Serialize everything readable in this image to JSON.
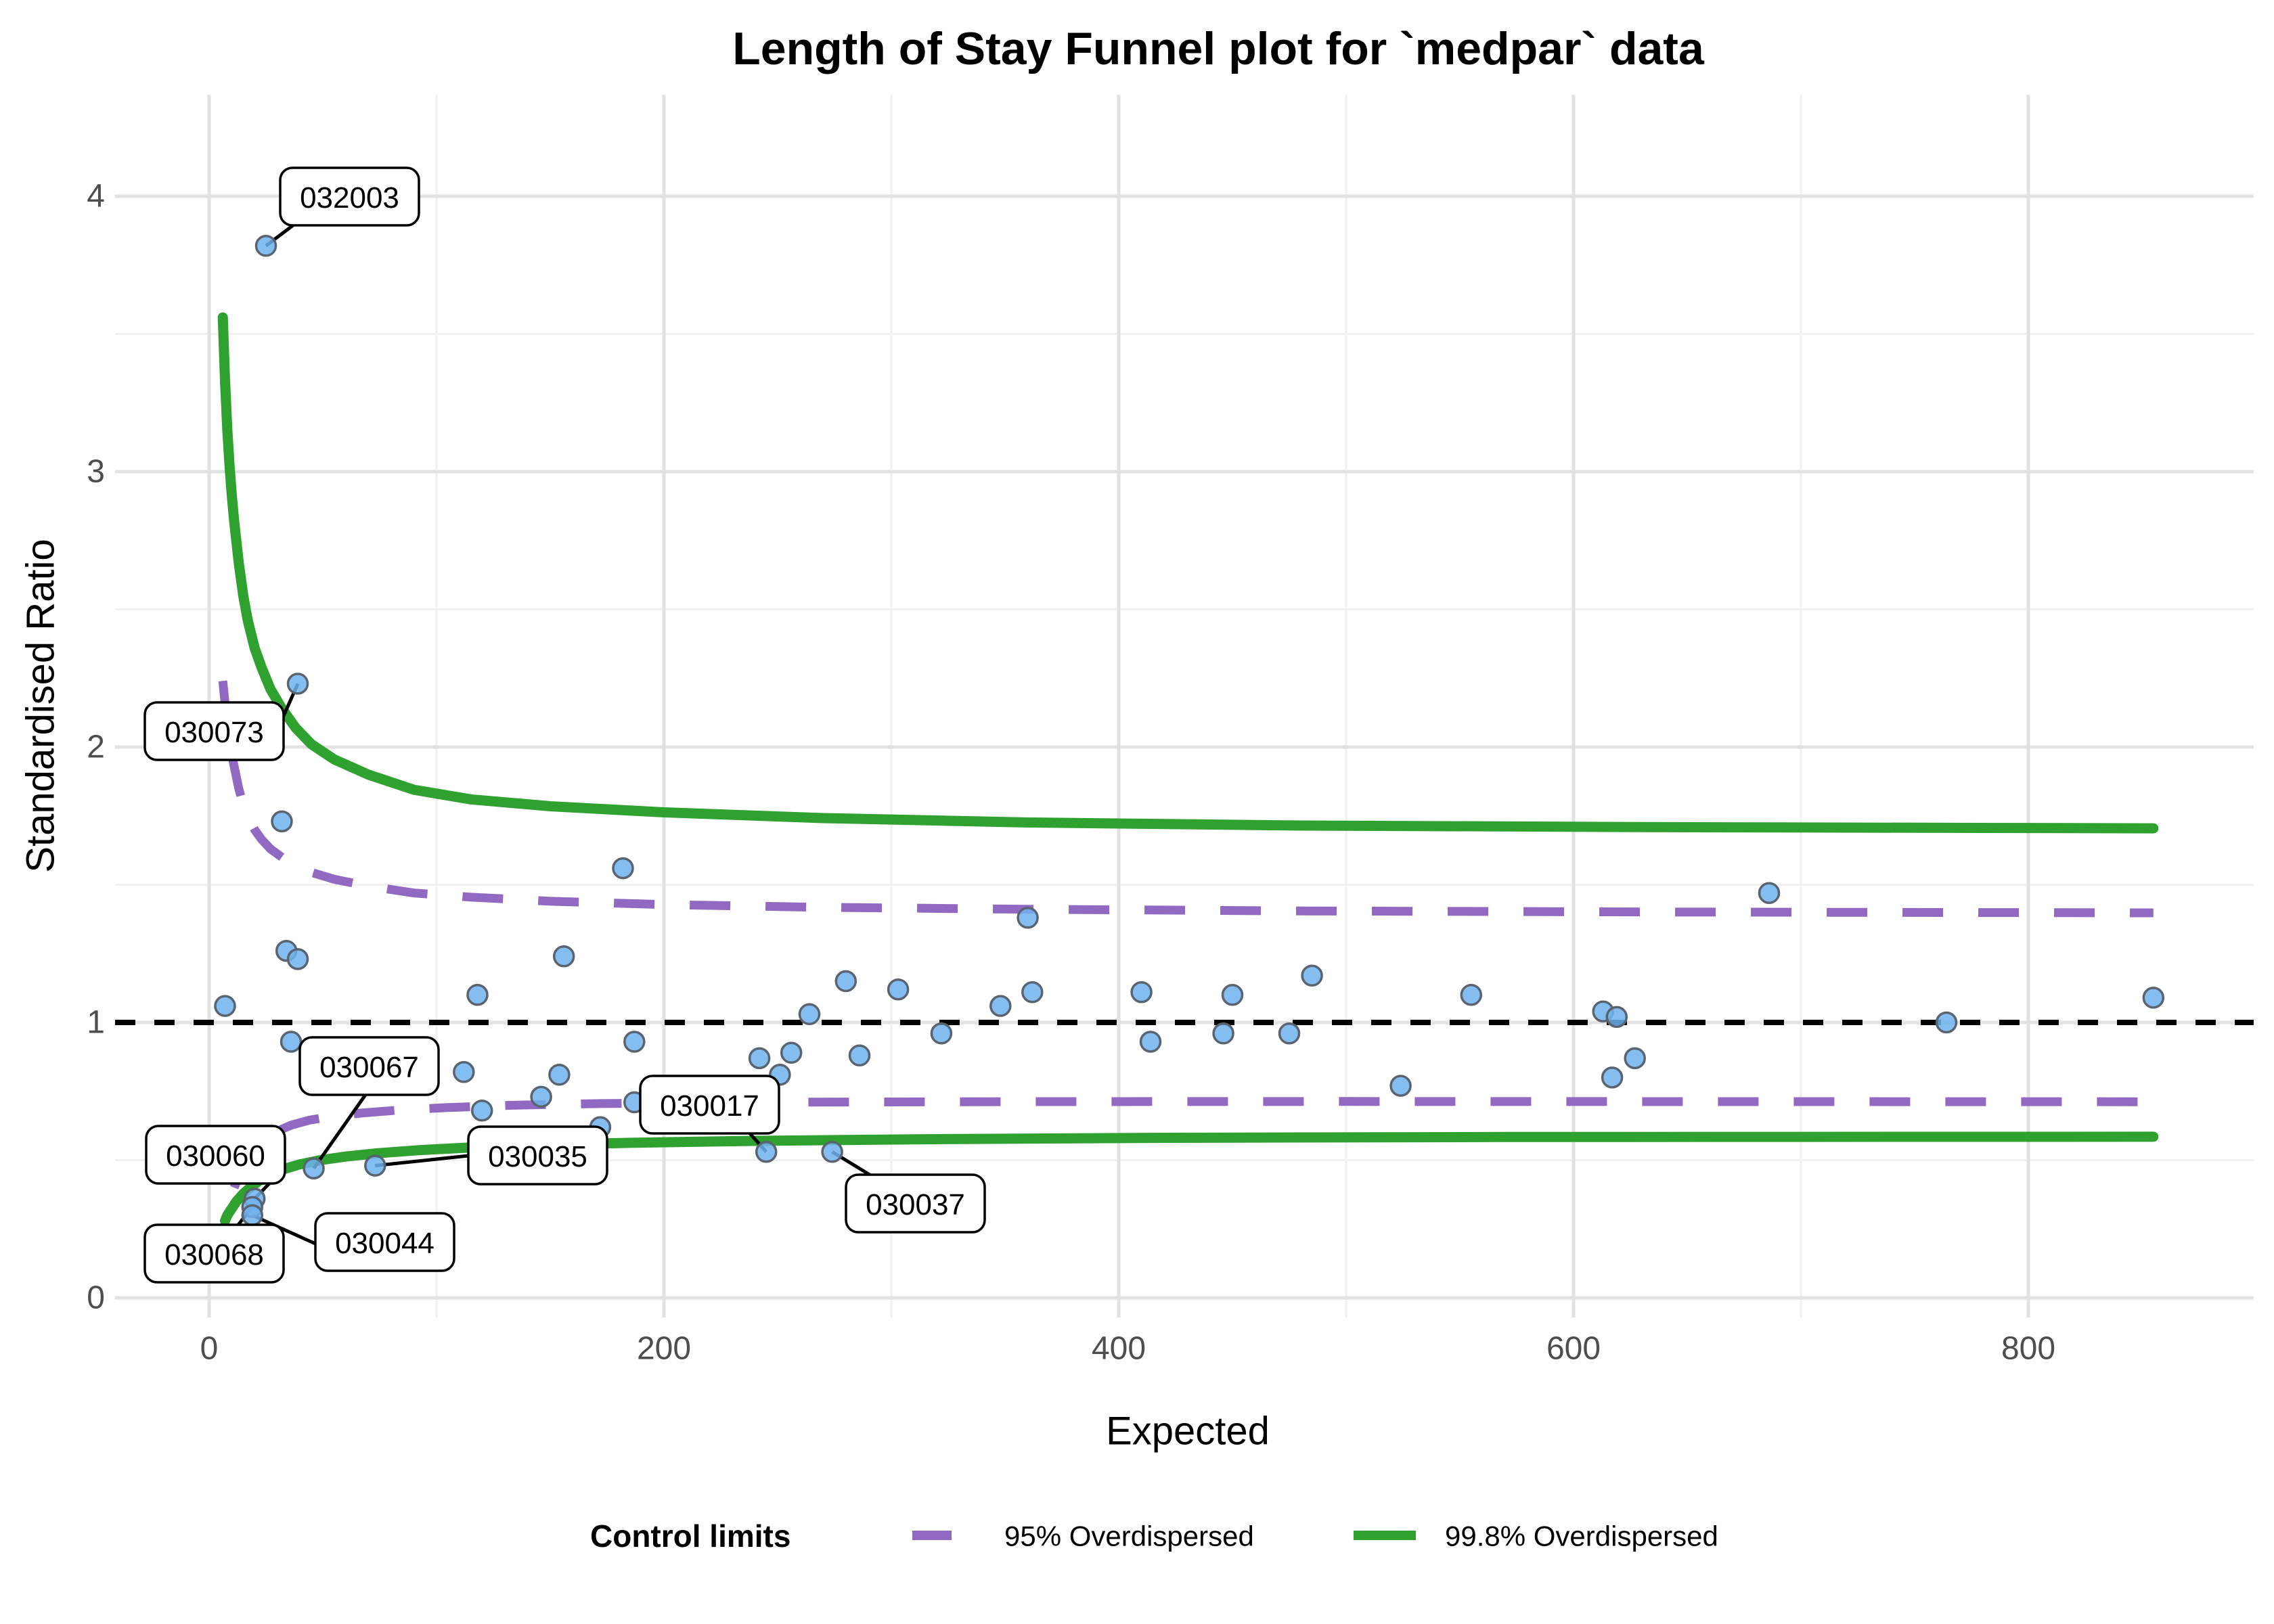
{
  "title": "Length of Stay Funnel plot for `medpar` data",
  "x_axis": {
    "title": "Expected",
    "ticks": [
      {
        "value": 0,
        "label": "0"
      },
      {
        "value": 200,
        "label": "200"
      },
      {
        "value": 400,
        "label": "400"
      },
      {
        "value": 600,
        "label": "600"
      },
      {
        "value": 800,
        "label": "800"
      }
    ],
    "minor_ticks": [
      100,
      300,
      500,
      700
    ]
  },
  "y_axis": {
    "title": "Standardised Ratio",
    "ticks": [
      {
        "value": 0,
        "label": "0"
      },
      {
        "value": 1,
        "label": "1"
      },
      {
        "value": 2,
        "label": "2"
      },
      {
        "value": 3,
        "label": "3"
      },
      {
        "value": 4,
        "label": "4"
      }
    ],
    "minor_ticks": [
      0.5,
      1.5,
      2.5,
      3.5
    ]
  },
  "legend": {
    "title": "Control limits",
    "items": [
      {
        "label": "95% Overdispersed",
        "color": "#9269c2",
        "style": "dashed"
      },
      {
        "label": "99.8% Overdispersed",
        "color": "#2ea12e",
        "style": "solid"
      }
    ]
  },
  "colors": {
    "point_fill": "#6fb1ec",
    "point_stroke": "#5a6470",
    "limit_95": "#9269c2",
    "limit_998": "#2ea12e",
    "reference_line": "#000000",
    "gridline_major": "#e2e2e2",
    "gridline_minor": "#f0f0f0",
    "tick_text": "#4d4d4d"
  },
  "chart_data": {
    "type": "scatter",
    "title": "Length of Stay Funnel plot for `medpar` data",
    "xlabel": "Expected",
    "ylabel": "Standardised Ratio",
    "xlim": [
      -40,
      898
    ],
    "ylim": [
      -0.07,
      4.37
    ],
    "grid": true,
    "legend_position": "bottom",
    "reference_line_y": 1,
    "points": [
      [
        7,
        1.06
      ],
      [
        32,
        1.73
      ],
      [
        34,
        1.26
      ],
      [
        39,
        1.23
      ],
      [
        36,
        0.93
      ],
      [
        118,
        1.1
      ],
      [
        112,
        0.82
      ],
      [
        120,
        0.68
      ],
      [
        146,
        0.73
      ],
      [
        154,
        0.81
      ],
      [
        156,
        1.24
      ],
      [
        172,
        0.62
      ],
      [
        182,
        1.56
      ],
      [
        187,
        0.71
      ],
      [
        187,
        0.93
      ],
      [
        242,
        0.87
      ],
      [
        251,
        0.81
      ],
      [
        256,
        0.89
      ],
      [
        264,
        1.03
      ],
      [
        280,
        1.15
      ],
      [
        286,
        0.88
      ],
      [
        303,
        1.12
      ],
      [
        322,
        0.96
      ],
      [
        348,
        1.06
      ],
      [
        360,
        1.38
      ],
      [
        362,
        1.11
      ],
      [
        410,
        1.11
      ],
      [
        414,
        0.93
      ],
      [
        446,
        0.96
      ],
      [
        450,
        1.1
      ],
      [
        475,
        0.96
      ],
      [
        485,
        1.17
      ],
      [
        524,
        0.77
      ],
      [
        555,
        1.1
      ],
      [
        613,
        1.04
      ],
      [
        619,
        1.02
      ],
      [
        617,
        0.8
      ],
      [
        627,
        0.87
      ],
      [
        686,
        1.47
      ],
      [
        764,
        1.0
      ],
      [
        855,
        1.09
      ]
    ],
    "labeled_points": [
      {
        "label": "032003",
        "x": 25,
        "y": 3.82
      },
      {
        "label": "030073",
        "x": 39,
        "y": 2.23
      },
      {
        "label": "030067",
        "x": 46,
        "y": 0.47
      },
      {
        "label": "030060",
        "x": 20,
        "y": 0.36
      },
      {
        "label": "030068",
        "x": 19,
        "y": 0.33
      },
      {
        "label": "030044",
        "x": 19,
        "y": 0.3
      },
      {
        "label": "030035",
        "x": 73,
        "y": 0.48
      },
      {
        "label": "030017",
        "x": 245,
        "y": 0.53
      },
      {
        "label": "030037",
        "x": 274,
        "y": 0.53
      }
    ],
    "control_limits": {
      "upper_998": [
        [
          6,
          3.56
        ],
        [
          7,
          3.33
        ],
        [
          8,
          3.15
        ],
        [
          9,
          3.02
        ],
        [
          10,
          2.91
        ],
        [
          11,
          2.82
        ],
        [
          13,
          2.67
        ],
        [
          15,
          2.55
        ],
        [
          17,
          2.46
        ],
        [
          20,
          2.36
        ],
        [
          23,
          2.29
        ],
        [
          27,
          2.21
        ],
        [
          32,
          2.14
        ],
        [
          38,
          2.07
        ],
        [
          45,
          2.01
        ],
        [
          55,
          1.955
        ],
        [
          70,
          1.9
        ],
        [
          90,
          1.845
        ],
        [
          115,
          1.81
        ],
        [
          150,
          1.785
        ],
        [
          200,
          1.763
        ],
        [
          270,
          1.742
        ],
        [
          360,
          1.726
        ],
        [
          480,
          1.715
        ],
        [
          640,
          1.709
        ],
        [
          855,
          1.705
        ]
      ],
      "upper_95": [
        [
          6,
          2.24
        ],
        [
          7,
          2.16
        ],
        [
          8,
          2.09
        ],
        [
          9,
          2.03
        ],
        [
          10,
          1.97
        ],
        [
          11,
          1.93
        ],
        [
          13,
          1.85
        ],
        [
          15,
          1.79
        ],
        [
          17,
          1.745
        ],
        [
          20,
          1.7
        ],
        [
          23,
          1.665
        ],
        [
          27,
          1.63
        ],
        [
          32,
          1.6
        ],
        [
          38,
          1.57
        ],
        [
          45,
          1.545
        ],
        [
          55,
          1.52
        ],
        [
          70,
          1.495
        ],
        [
          90,
          1.47
        ],
        [
          115,
          1.455
        ],
        [
          150,
          1.44
        ],
        [
          200,
          1.428
        ],
        [
          270,
          1.418
        ],
        [
          360,
          1.411
        ],
        [
          480,
          1.405
        ],
        [
          640,
          1.401
        ],
        [
          855,
          1.398
        ]
      ],
      "lower_95": [
        [
          11,
          0.4
        ],
        [
          13,
          0.44
        ],
        [
          15,
          0.475
        ],
        [
          18,
          0.515
        ],
        [
          21,
          0.545
        ],
        [
          25,
          0.578
        ],
        [
          30,
          0.605
        ],
        [
          36,
          0.627
        ],
        [
          44,
          0.645
        ],
        [
          54,
          0.659
        ],
        [
          67,
          0.671
        ],
        [
          84,
          0.682
        ],
        [
          105,
          0.691
        ],
        [
          132,
          0.699
        ],
        [
          168,
          0.705
        ],
        [
          215,
          0.709
        ],
        [
          280,
          0.711
        ],
        [
          370,
          0.7125
        ],
        [
          500,
          0.713
        ],
        [
          680,
          0.7125
        ],
        [
          855,
          0.712
        ]
      ],
      "lower_998": [
        [
          7,
          0.28
        ],
        [
          8,
          0.3
        ],
        [
          10,
          0.325
        ],
        [
          12,
          0.35
        ],
        [
          15,
          0.378
        ],
        [
          18,
          0.4
        ],
        [
          22,
          0.425
        ],
        [
          27,
          0.448
        ],
        [
          33,
          0.468
        ],
        [
          40,
          0.485
        ],
        [
          49,
          0.5
        ],
        [
          60,
          0.513
        ],
        [
          74,
          0.525
        ],
        [
          92,
          0.536
        ],
        [
          115,
          0.546
        ],
        [
          145,
          0.555
        ],
        [
          185,
          0.563
        ],
        [
          240,
          0.57
        ],
        [
          315,
          0.576
        ],
        [
          420,
          0.581
        ],
        [
          570,
          0.584
        ],
        [
          855,
          0.585
        ]
      ]
    }
  }
}
